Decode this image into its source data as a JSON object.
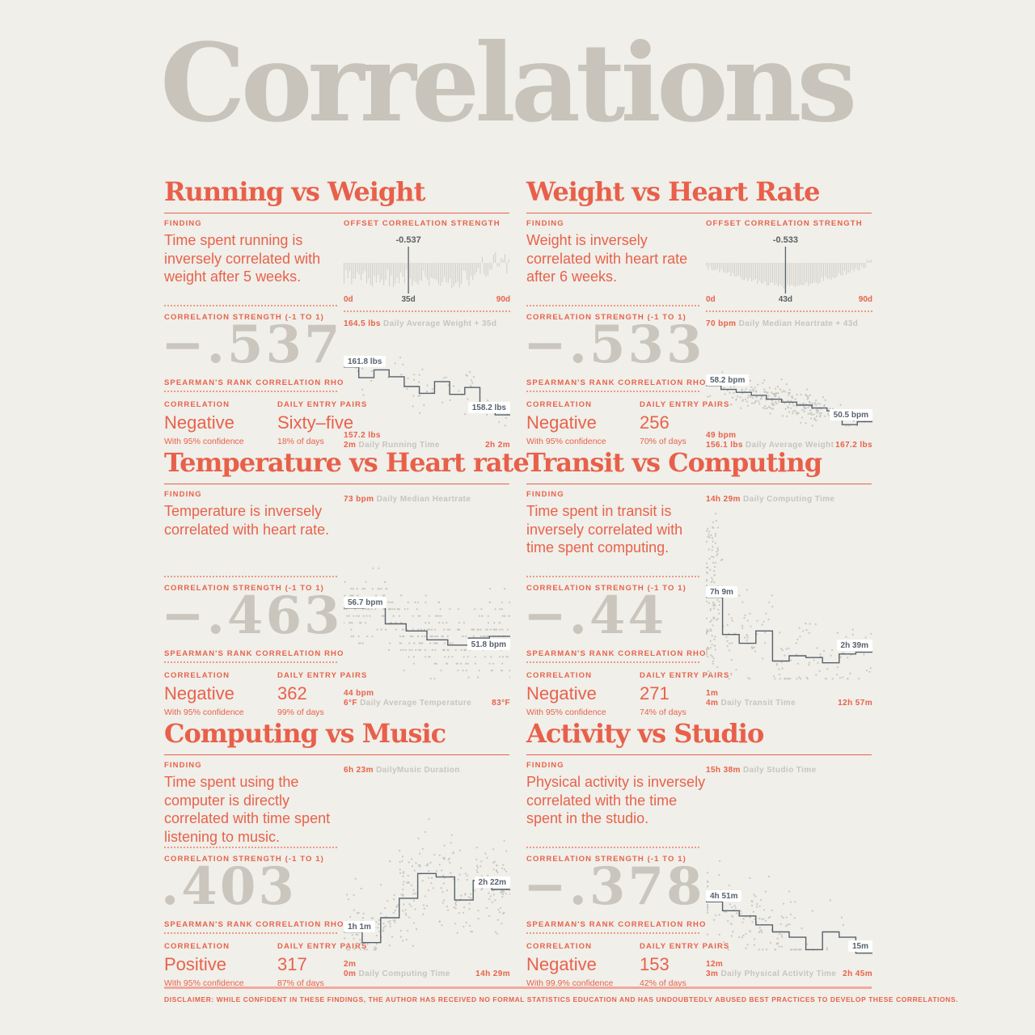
{
  "page": {
    "title": "Correlations",
    "disclaimer": "DISCLAIMER: WHILE CONFIDENT IN THESE FINDINGS, THE AUTHOR HAS RECEIVED NO FORMAL STATISTICS EDUCATION AND HAS UNDOUBTEDLY ABUSED BEST PRACTICES TO DEVELOP THESE CORRELATIONS.",
    "colors": {
      "background": "#f0efe9",
      "accent_red": "#e8624c",
      "muted_number_grey": "#cac6bd",
      "title_grey": "#c8c4bb",
      "chart_ink": "#57626d",
      "dot_grey": "#c8c7c1",
      "axis_name_grey": "#c6c5bf"
    }
  },
  "labels": {
    "finding": "FINDING",
    "offset": "OFFSET CORRELATION STRENGTH",
    "strength": "CORRELATION STRENGTH (-1 TO 1)",
    "spearman": "SPEARMAN'S RANK CORRELATION RHO",
    "correlation": "CORRELATION",
    "pairs": "DAILY ENTRY PAIRS"
  },
  "panels": [
    {
      "title": "Running vs Weight",
      "finding": "Time spent running is inversely correlated with weight after 5 weeks.",
      "strength": "−.537",
      "correlation": "Negative",
      "confidence": "With 95% confidence",
      "pairs": "Sixty–five",
      "pairs_note": "18% of days"
    },
    {
      "title": "Weight vs Heart Rate",
      "finding": "Weight is inversely correlated with heart rate after 6 weeks.",
      "strength": "−.533",
      "correlation": "Negative",
      "confidence": "With 95% confidence",
      "pairs": "256",
      "pairs_note": "70% of days"
    },
    {
      "title": "Temperature vs Heart rate",
      "finding": "Temperature is inversely correlated with heart rate.",
      "strength": "−.463",
      "correlation": "Negative",
      "confidence": "With 95% confidence",
      "pairs": "362",
      "pairs_note": "99% of days"
    },
    {
      "title": "Transit vs Computing",
      "finding": "Time spent in transit is inversely correlated with time spent computing.",
      "strength": "−.44",
      "correlation": "Negative",
      "confidence": "With 95% confidence",
      "pairs": "271",
      "pairs_note": "74% of days"
    },
    {
      "title": "Computing vs Music",
      "finding": "Time spent using the computer is directly correlated with time spent listening to music.",
      "strength": ".403",
      "correlation": "Positive",
      "confidence": "With 95% confidence",
      "pairs": "317",
      "pairs_note": "87% of days"
    },
    {
      "title": "Activity vs Studio",
      "finding": "Physical activity is inversely correlated with the time spent in the studio.",
      "strength": "−.378",
      "correlation": "Negative",
      "confidence": "With 99.9% confidence",
      "pairs": "153",
      "pairs_note": "42% of days"
    }
  ],
  "chart_data": [
    {
      "panel": "Running vs Weight",
      "offset_chart": {
        "type": "bar",
        "marker_value": "-0.537",
        "marker_day": 35,
        "days_range": [
          0,
          90
        ],
        "x_ticks": [
          "0d",
          "35d",
          "90d"
        ],
        "bars": {
          "count": 88,
          "seed": 3,
          "style": "random"
        }
      },
      "scatter_chart": {
        "type": "scatter+step",
        "y_max": "164.5 lbs",
        "y_axis_name": "Daily Average Weight + 35d",
        "y_min": "157.2 lbs",
        "x_min": "2m",
        "x_axis_name": "Daily Running Time",
        "x_max": "2h 2m",
        "start_label": "161.8 lbs",
        "end_label": "158.2 lbs",
        "step_levels": [
          0.37,
          0.48,
          0.4,
          0.47,
          0.57,
          0.64,
          0.52,
          0.65,
          0.58,
          0.79,
          0.86
        ],
        "points": {
          "count": 60,
          "seed": 11,
          "spread": 0.22,
          "mode": "default"
        }
      }
    },
    {
      "panel": "Weight vs Heart Rate",
      "offset_chart": {
        "type": "bar",
        "marker_value": "-0.533",
        "marker_day": 43,
        "days_range": [
          0,
          90
        ],
        "x_ticks": [
          "0d",
          "43d",
          "90d"
        ],
        "bars": {
          "count": 88,
          "seed": 9,
          "style": "bowl"
        }
      },
      "scatter_chart": {
        "type": "scatter+step",
        "y_max": "70 bpm",
        "y_axis_name": "Daily Median Heartrate + 43d",
        "y_min": "49 bpm",
        "x_min": "156.1 lbs",
        "x_axis_name": "Daily Average Weight",
        "x_max": "167.2 lbs",
        "start_label": "58.2 bpm",
        "end_label": "50.5 bpm",
        "step_levels": [
          0.56,
          0.6,
          0.63,
          0.66,
          0.7,
          0.73,
          0.76,
          0.79,
          0.82,
          0.96,
          0.93
        ],
        "points": {
          "count": 240,
          "seed": 21,
          "spread": 0.16,
          "mode": "cloud"
        }
      }
    },
    {
      "panel": "Temperature vs Heart rate",
      "scatter_chart": {
        "type": "scatter+step",
        "y_max": "73 bpm",
        "y_axis_name": "Daily Median Heartrate",
        "y_min": "44 bpm",
        "x_min": "6°F",
        "x_axis_name": "Daily Average Temperature",
        "x_max": "83°F",
        "start_label": "56.7 bpm",
        "end_label": "51.8 bpm",
        "end_label_below": true,
        "step_levels": [
          0.57,
          0.53,
          0.66,
          0.7,
          0.75,
          0.78,
          0.74,
          0.73
        ],
        "points": {
          "count": 340,
          "seed": 33,
          "spread": 0.2,
          "mode": "banded"
        }
      }
    },
    {
      "panel": "Transit vs Computing",
      "scatter_chart": {
        "type": "scatter+step",
        "y_max": "14h 29m",
        "y_axis_name": "Daily Computing Time",
        "y_min": "1m",
        "x_min": "4m",
        "x_axis_name": "Daily Transit Time",
        "x_max": "12h 57m",
        "start_label": "7h 9m",
        "end_label": "2h 39m",
        "step_levels": [
          0.51,
          0.72,
          0.77,
          0.7,
          0.87,
          0.84,
          0.85,
          0.88,
          0.83,
          0.82
        ],
        "points": {
          "count": 250,
          "seed": 41,
          "spread": 0.22,
          "mode": "leftcol"
        }
      }
    },
    {
      "panel": "Computing vs Music",
      "scatter_chart": {
        "type": "scatter+step",
        "y_max": "6h 23m",
        "y_axis_name": "DailyMusic Duration",
        "y_min": "2m",
        "x_min": "0m",
        "x_axis_name": "Daily Computing Time",
        "x_max": "14h 29m",
        "start_label": "1h 1m",
        "end_label": "2h 22m",
        "step_levels": [
          0.87,
          0.93,
          0.79,
          0.68,
          0.54,
          0.56,
          0.69,
          0.58,
          0.63
        ],
        "points": {
          "count": 300,
          "seed": 55,
          "spread": 0.24,
          "mode": "default"
        }
      }
    },
    {
      "panel": "Activity vs Studio",
      "scatter_chart": {
        "type": "scatter+step",
        "y_max": "15h 38m",
        "y_axis_name": "Daily Studio Time",
        "y_min": "12m",
        "x_min": "3m",
        "x_axis_name": "Daily Physical Activity Time",
        "x_max": "2h 45m",
        "start_label": "4h 51m",
        "end_label": "15m",
        "step_levels": [
          0.7,
          0.75,
          0.78,
          0.83,
          0.87,
          0.9,
          0.97,
          0.87,
          0.9,
          0.99
        ],
        "points": {
          "count": 150,
          "seed": 77,
          "spread": 0.2,
          "mode": "upper"
        }
      }
    }
  ]
}
